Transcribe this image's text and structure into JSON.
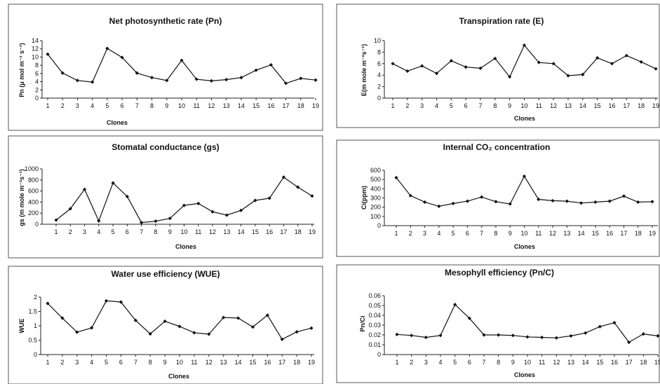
{
  "chart_data": [
    {
      "type": "line",
      "title": "Net photosynthetic rate (Pn)",
      "xlabel": "Clones",
      "ylabel": "Pn (μ mol m⁻² s⁻¹)",
      "x": [
        1,
        2,
        3,
        4,
        5,
        6,
        7,
        8,
        9,
        10,
        11,
        12,
        13,
        14,
        15,
        16,
        17,
        18,
        19
      ],
      "y": [
        10.7,
        6.1,
        4.3,
        3.9,
        12.1,
        9.9,
        6.1,
        5.0,
        4.3,
        9.2,
        4.6,
        4.2,
        4.5,
        5.0,
        6.8,
        8.1,
        3.6,
        4.8,
        4.4
      ],
      "ylim": [
        0,
        14
      ],
      "yticks": [
        0,
        2,
        4,
        6,
        8,
        10,
        12,
        14
      ]
    },
    {
      "type": "line",
      "title": "Transpiration rate (E)",
      "xlabel": "Clones",
      "ylabel": "E(m mole m⁻²s⁻¹)",
      "x": [
        1,
        2,
        3,
        4,
        5,
        6,
        7,
        8,
        9,
        10,
        11,
        12,
        13,
        14,
        15,
        16,
        17,
        18,
        19
      ],
      "y": [
        6.0,
        4.7,
        5.6,
        4.3,
        6.5,
        5.4,
        5.2,
        6.9,
        3.7,
        9.2,
        6.2,
        6.0,
        3.9,
        4.1,
        7.0,
        6.0,
        7.4,
        6.3,
        5.1
      ],
      "ylim": [
        0,
        10
      ],
      "yticks": [
        0,
        2,
        4,
        6,
        8,
        10
      ]
    },
    {
      "type": "line",
      "title": "Stomatal conductance (gs)",
      "xlabel": "Clones",
      "ylabel": "gs (m mole m⁻²s⁻¹)",
      "x": [
        1,
        2,
        3,
        4,
        5,
        6,
        7,
        8,
        9,
        10,
        11,
        12,
        13,
        14,
        15,
        16,
        17,
        18,
        19
      ],
      "y": [
        75,
        280,
        630,
        60,
        745,
        500,
        30,
        55,
        105,
        340,
        375,
        225,
        165,
        250,
        430,
        470,
        850,
        670,
        510
      ],
      "ylim": [
        0,
        1000
      ],
      "yticks": [
        0,
        200,
        400,
        600,
        800,
        1000
      ]
    },
    {
      "type": "line",
      "title": "Internal CO₂ concentration",
      "xlabel": "Clones",
      "ylabel": "Ci(ppm)",
      "x": [
        1,
        2,
        3,
        4,
        5,
        6,
        7,
        8,
        9,
        10,
        11,
        12,
        13,
        14,
        15,
        16,
        17,
        18,
        19
      ],
      "y": [
        520,
        325,
        255,
        210,
        240,
        265,
        310,
        260,
        235,
        535,
        285,
        270,
        265,
        245,
        255,
        265,
        320,
        255,
        260
      ],
      "ylim": [
        0,
        600
      ],
      "yticks": [
        0,
        100,
        200,
        300,
        400,
        500,
        600
      ]
    },
    {
      "type": "line",
      "title": "Water use efficiency (WUE)",
      "xlabel": "Clones",
      "ylabel": "WUE",
      "x": [
        1,
        2,
        3,
        4,
        5,
        6,
        7,
        8,
        9,
        10,
        11,
        12,
        13,
        14,
        15,
        16,
        17,
        18,
        19
      ],
      "y": [
        1.78,
        1.27,
        0.78,
        0.93,
        1.87,
        1.83,
        1.19,
        0.72,
        1.16,
        0.98,
        0.76,
        0.71,
        1.29,
        1.27,
        0.96,
        1.37,
        0.53,
        0.79,
        0.92
      ],
      "ylim": [
        0,
        2
      ],
      "yticks": [
        0,
        0.5,
        1,
        1.5,
        2
      ],
      "ytick_labels": [
        "0",
        "0.5",
        "1",
        "1.5",
        "2"
      ]
    },
    {
      "type": "line",
      "title": "Mesophyll efficiency (Pn/C)",
      "xlabel": "Clones",
      "ylabel": "Pn/Ci",
      "x": [
        1,
        2,
        3,
        4,
        5,
        6,
        7,
        8,
        9,
        10,
        11,
        12,
        13,
        14,
        15,
        16,
        17,
        18,
        19
      ],
      "y": [
        0.0205,
        0.0195,
        0.0175,
        0.0195,
        0.051,
        0.037,
        0.02,
        0.02,
        0.0195,
        0.018,
        0.0175,
        0.017,
        0.019,
        0.022,
        0.0285,
        0.0325,
        0.0125,
        0.021,
        0.019
      ],
      "ylim": [
        0,
        0.06
      ],
      "yticks": [
        0,
        0.01,
        0.02,
        0.03,
        0.04,
        0.05,
        0.06
      ],
      "ytick_labels": [
        "0",
        "0.01",
        "0.02",
        "0.03",
        "0.04",
        "0.05",
        "0.06"
      ]
    }
  ]
}
